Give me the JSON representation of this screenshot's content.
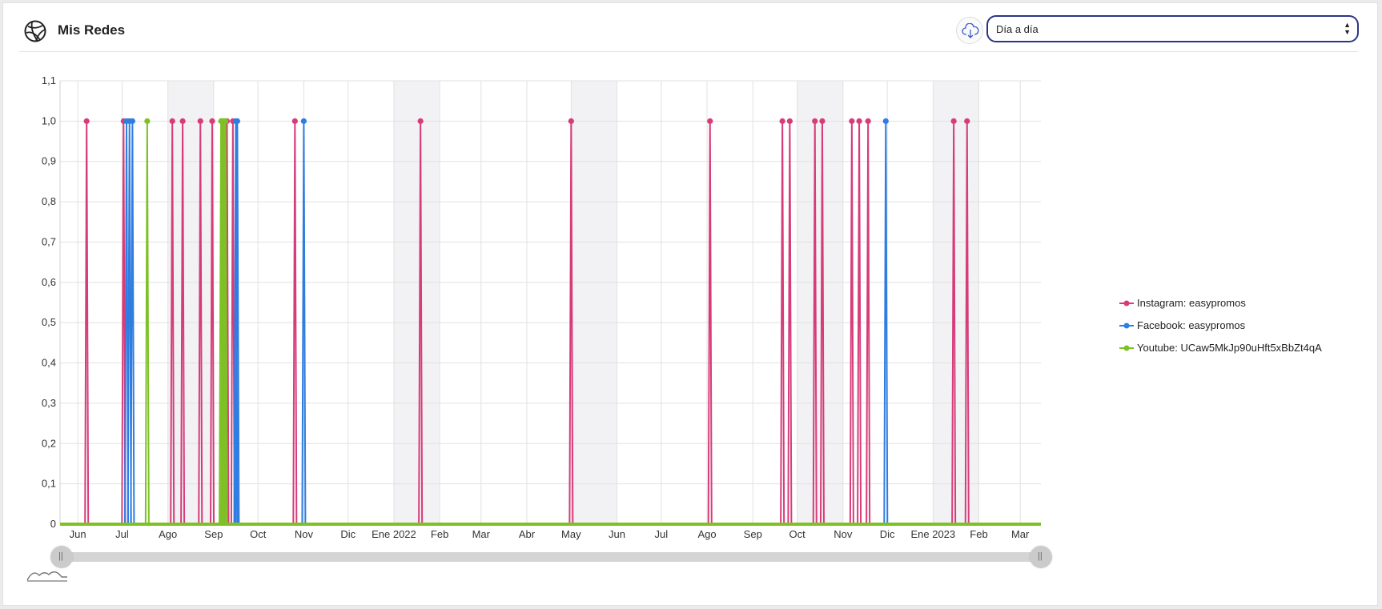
{
  "header": {
    "title": "Mis Redes",
    "logo_icon": "globe-network-icon",
    "download_icon": "cloud-download-icon",
    "period_select": {
      "value": "Día a día"
    }
  },
  "chart_data": {
    "type": "line",
    "ylim": [
      0,
      1.1
    ],
    "yticks": [
      "0",
      "0,1",
      "0,2",
      "0,3",
      "0,4",
      "0,5",
      "0,6",
      "0,7",
      "0,8",
      "0,9",
      "1,0",
      "1,1"
    ],
    "xlim": [
      "2021-05-20",
      "2023-03-15"
    ],
    "xticks": [
      {
        "label": "Jun",
        "date": "2021-06-01"
      },
      {
        "label": "Jul",
        "date": "2021-07-01"
      },
      {
        "label": "Ago",
        "date": "2021-08-01"
      },
      {
        "label": "Sep",
        "date": "2021-09-01"
      },
      {
        "label": "Oct",
        "date": "2021-10-01"
      },
      {
        "label": "Nov",
        "date": "2021-11-01"
      },
      {
        "label": "Dic",
        "date": "2021-12-01"
      },
      {
        "label": "Ene 2022",
        "date": "2022-01-01"
      },
      {
        "label": "Feb",
        "date": "2022-02-01"
      },
      {
        "label": "Mar",
        "date": "2022-03-01"
      },
      {
        "label": "Abr",
        "date": "2022-04-01"
      },
      {
        "label": "May",
        "date": "2022-05-01"
      },
      {
        "label": "Jun",
        "date": "2022-06-01"
      },
      {
        "label": "Jul",
        "date": "2022-07-01"
      },
      {
        "label": "Ago",
        "date": "2022-08-01"
      },
      {
        "label": "Sep",
        "date": "2022-09-01"
      },
      {
        "label": "Oct",
        "date": "2022-10-01"
      },
      {
        "label": "Nov",
        "date": "2022-11-01"
      },
      {
        "label": "Dic",
        "date": "2022-12-01"
      },
      {
        "label": "Ene 2023",
        "date": "2023-01-01"
      },
      {
        "label": "Feb",
        "date": "2023-02-01"
      },
      {
        "label": "Mar",
        "date": "2023-03-01"
      }
    ],
    "shaded_bands": [
      [
        "2021-08-01",
        "2021-09-01"
      ],
      [
        "2022-01-01",
        "2022-02-01"
      ],
      [
        "2022-05-01",
        "2022-06-01"
      ],
      [
        "2022-10-01",
        "2022-11-01"
      ],
      [
        "2023-01-01",
        "2023-02-01"
      ]
    ],
    "grid": true,
    "legend_position": "right",
    "baseline_value": 0,
    "series": [
      {
        "name": "Instagram: easypromos",
        "color": "#d63c7a",
        "peaks": [
          "2021-06-07",
          "2021-07-02",
          "2021-08-04",
          "2021-08-11",
          "2021-08-23",
          "2021-08-31",
          "2021-09-10",
          "2021-09-14",
          "2021-10-26",
          "2022-01-19",
          "2022-05-01",
          "2022-08-03",
          "2022-09-21",
          "2022-09-26",
          "2022-10-13",
          "2022-10-18",
          "2022-11-07",
          "2022-11-12",
          "2022-11-18",
          "2023-01-15",
          "2023-01-24"
        ],
        "peak_value": 1
      },
      {
        "name": "Facebook: easypromos",
        "color": "#2f7de1",
        "peaks": [
          "2021-07-04",
          "2021-07-06",
          "2021-07-08",
          "2021-09-16",
          "2021-09-17",
          "2021-11-01",
          "2022-11-30"
        ],
        "peak_value": 1
      },
      {
        "name": "Youtube: UCaw5MkJp90uHft5xBbZt4qA",
        "color": "#7dc125",
        "peaks": [
          "2021-07-18",
          "2021-09-06",
          "2021-09-07",
          "2021-09-08",
          "2021-09-09"
        ],
        "peak_value": 1
      }
    ]
  },
  "slider": {
    "handle_left_icon": "grip-icon",
    "handle_right_icon": "grip-icon",
    "range_start": 0,
    "range_end": 1
  },
  "mini_chart_icon": "area-chart-icon"
}
